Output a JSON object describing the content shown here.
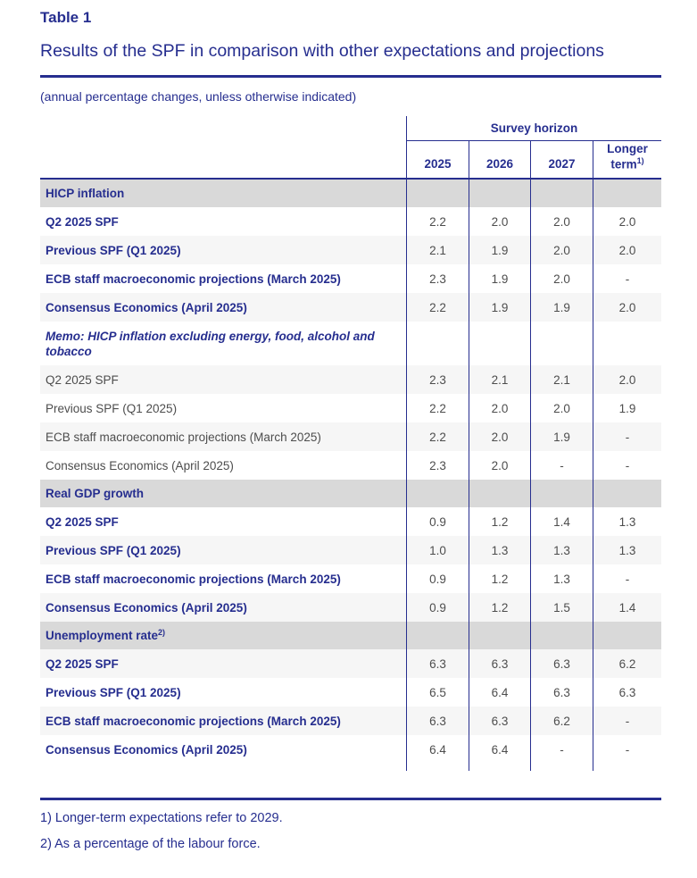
{
  "page": {
    "kicker": "Table 1",
    "title": "Results of the SPF in comparison with other expectations and projections",
    "note": "(annual percentage changes, unless otherwise indicated)"
  },
  "table": {
    "group_header": "Survey horizon",
    "columns": [
      "2025",
      "2026",
      "2027"
    ],
    "longer_term": {
      "text": "Longer term",
      "sup": "1)"
    },
    "rows": [
      {
        "type": "section",
        "label": "HICP inflation",
        "sup": "",
        "values": [
          "",
          "",
          "",
          ""
        ]
      },
      {
        "type": "data",
        "emph": true,
        "label": "Q2 2025 SPF",
        "sup": "",
        "values": [
          "2.2",
          "2.0",
          "2.0",
          "2.0"
        ]
      },
      {
        "type": "data",
        "emph": true,
        "label": "Previous SPF (Q1 2025)",
        "sup": "",
        "values": [
          "2.1",
          "1.9",
          "2.0",
          "2.0"
        ]
      },
      {
        "type": "data",
        "emph": true,
        "label": "ECB staff macroeconomic projections (March 2025)",
        "sup": "",
        "values": [
          "2.3",
          "1.9",
          "2.0",
          "-"
        ]
      },
      {
        "type": "data",
        "emph": true,
        "label": "Consensus Economics (April 2025)",
        "sup": "",
        "values": [
          "2.2",
          "1.9",
          "1.9",
          "2.0"
        ]
      },
      {
        "type": "memo",
        "emph": true,
        "label": "Memo: HICP inflation excluding energy, food, alcohol and tobacco",
        "sup": "",
        "values": [
          "",
          "",
          "",
          ""
        ]
      },
      {
        "type": "data",
        "emph": false,
        "label": "Q2 2025 SPF",
        "sup": "",
        "values": [
          "2.3",
          "2.1",
          "2.1",
          "2.0"
        ]
      },
      {
        "type": "data",
        "emph": false,
        "label": "Previous SPF (Q1 2025)",
        "sup": "",
        "values": [
          "2.2",
          "2.0",
          "2.0",
          "1.9"
        ]
      },
      {
        "type": "data",
        "emph": false,
        "label": "ECB staff macroeconomic projections (March 2025)",
        "sup": "",
        "values": [
          "2.2",
          "2.0",
          "1.9",
          "-"
        ]
      },
      {
        "type": "data",
        "emph": false,
        "label": "Consensus Economics (April 2025)",
        "sup": "",
        "values": [
          "2.3",
          "2.0",
          "-",
          "-"
        ]
      },
      {
        "type": "section",
        "label": "Real GDP growth",
        "sup": "",
        "values": [
          "",
          "",
          "",
          ""
        ]
      },
      {
        "type": "data",
        "emph": true,
        "label": "Q2 2025 SPF",
        "sup": "",
        "values": [
          "0.9",
          "1.2",
          "1.4",
          "1.3"
        ]
      },
      {
        "type": "data",
        "emph": true,
        "label": "Previous SPF (Q1 2025)",
        "sup": "",
        "values": [
          "1.0",
          "1.3",
          "1.3",
          "1.3"
        ]
      },
      {
        "type": "data",
        "emph": true,
        "label": "ECB staff macroeconomic projections (March 2025)",
        "sup": "",
        "values": [
          "0.9",
          "1.2",
          "1.3",
          "-"
        ]
      },
      {
        "type": "data",
        "emph": true,
        "label": "Consensus Economics (April 2025)",
        "sup": "",
        "values": [
          "0.9",
          "1.2",
          "1.5",
          "1.4"
        ]
      },
      {
        "type": "section",
        "label": "Unemployment rate",
        "sup": "2)",
        "values": [
          "",
          "",
          "",
          ""
        ]
      },
      {
        "type": "data",
        "emph": true,
        "label": "Q2 2025 SPF",
        "sup": "",
        "values": [
          "6.3",
          "6.3",
          "6.3",
          "6.2"
        ]
      },
      {
        "type": "data",
        "emph": true,
        "label": "Previous SPF (Q1 2025)",
        "sup": "",
        "values": [
          "6.5",
          "6.4",
          "6.3",
          "6.3"
        ]
      },
      {
        "type": "data",
        "emph": true,
        "label": "ECB staff macroeconomic projections (March 2025)",
        "sup": "",
        "values": [
          "6.3",
          "6.3",
          "6.2",
          "-"
        ]
      },
      {
        "type": "data",
        "emph": true,
        "label": "Consensus Economics (April 2025)",
        "sup": "",
        "values": [
          "6.4",
          "6.4",
          "-",
          "-"
        ]
      }
    ]
  },
  "footnotes": [
    "1) Longer-term expectations refer to 2029.",
    "2) As a percentage of the labour force."
  ],
  "colors": {
    "accent_blue": "#262e8f",
    "value_gray": "#4d4d4d",
    "section_background": "#d9d9d9",
    "stripe_background": "#f6f6f6"
  }
}
